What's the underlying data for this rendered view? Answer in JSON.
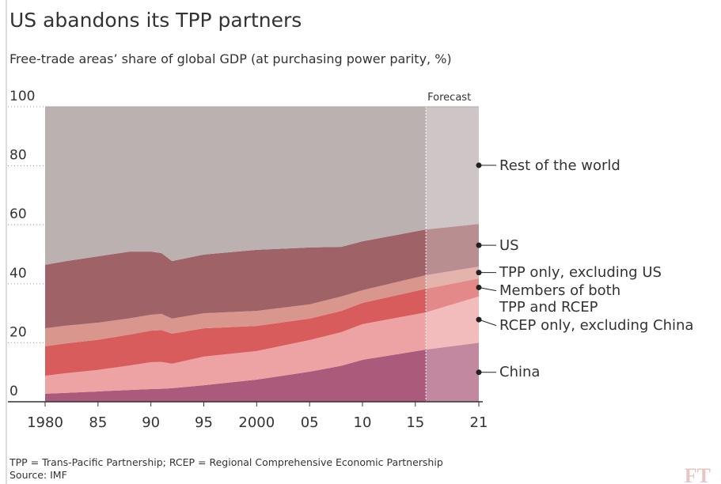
{
  "chart_data": {
    "type": "stacked_area",
    "title": "US abandons its TPP partners",
    "subtitle": "Free-trade areas’ share of global GDP (at purchasing power parity, %)",
    "annotation": "Forecast",
    "forecast_start": 2016,
    "footnote": "TPP = Trans-Pacific Partnership; RCEP = Regional Comprehensive Economic Partnership",
    "source": "Source: IMF",
    "logo": "FT",
    "x": [
      1980,
      1982,
      1985,
      1988,
      1990,
      1991,
      1992,
      1995,
      2000,
      2005,
      2008,
      2010,
      2016,
      2021
    ],
    "xlim": [
      1980,
      2021
    ],
    "xticks": [
      {
        "value": 1980,
        "label": "1980"
      },
      {
        "value": 1985,
        "label": "85"
      },
      {
        "value": 1990,
        "label": "90"
      },
      {
        "value": 1995,
        "label": "95"
      },
      2000,
      {
        "value": 2005,
        "label": "05"
      },
      {
        "value": 2010,
        "label": "10"
      },
      {
        "value": 2015,
        "label": "15"
      },
      {
        "value": 2021,
        "label": "21"
      }
    ],
    "ylim": [
      0,
      100
    ],
    "yticks": [
      0,
      20,
      40,
      60,
      80,
      100
    ],
    "grid": true,
    "series": [
      {
        "name": "China",
        "color": "#ab5a7c",
        "values": [
          2.7,
          3.0,
          3.5,
          4.0,
          4.3,
          4.4,
          4.6,
          5.6,
          7.5,
          10.2,
          12.2,
          14.2,
          17.7,
          20.0
        ]
      },
      {
        "name": "RCEP only, excluding China",
        "color": "#eda2a3",
        "values": [
          6.1,
          6.7,
          7.3,
          8.3,
          9.1,
          9.1,
          8.3,
          9.7,
          9.7,
          10.7,
          11.4,
          12.1,
          12.6,
          15.7
        ]
      },
      {
        "name": "Members of both\nTPP and RCEP",
        "color": "#d95c5d",
        "values": [
          10.0,
          10.1,
          10.2,
          10.5,
          10.7,
          10.8,
          10.2,
          9.6,
          8.5,
          7.3,
          7.2,
          7.2,
          8.0,
          6.1
        ]
      },
      {
        "name": "TPP only, excluding US",
        "color": "#d9968c",
        "values": [
          6.1,
          6.0,
          5.8,
          5.5,
          5.4,
          5.5,
          5.1,
          5.1,
          5.1,
          4.8,
          4.9,
          4.3,
          4.6,
          4.0
        ]
      },
      {
        "name": "US",
        "color": "#9f6367",
        "values": [
          21.5,
          21.9,
          22.5,
          22.6,
          21.4,
          20.6,
          19.5,
          19.9,
          20.7,
          19.3,
          16.8,
          16.6,
          15.5,
          14.5
        ]
      },
      {
        "name": "Rest of the world",
        "color": "#bcb1b1",
        "values": [
          53.6,
          52.3,
          50.7,
          49.1,
          49.1,
          49.6,
          52.3,
          50.1,
          48.5,
          47.7,
          47.5,
          45.6,
          41.6,
          39.7
        ]
      }
    ]
  }
}
